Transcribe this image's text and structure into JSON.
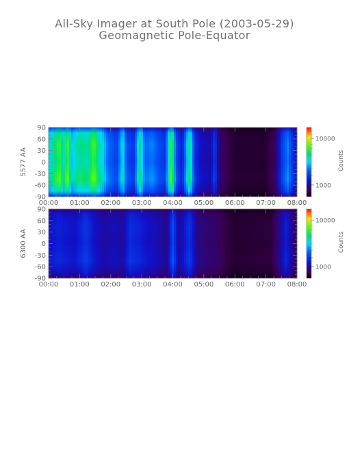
{
  "title": "All-Sky Imager at South Pole (2003-05-29)",
  "subtitle": "Geomagnetic Pole-Equator",
  "chart_data": [
    {
      "type": "heatmap",
      "ylabel": "5577 AA",
      "colorbar_label": "Counts",
      "colorbar_ticks": [
        "10000",
        "1000"
      ],
      "colorbar_scale": "log",
      "x_ticks": [
        "00:00",
        "01:00",
        "02:00",
        "03:00",
        "04:00",
        "05:00",
        "06:00",
        "07:00",
        "08:00"
      ],
      "xlim_hours": [
        0,
        8
      ],
      "y_ticks": [
        "90",
        "60",
        "30",
        "0",
        "-30",
        "-60",
        "-90"
      ],
      "ylim": [
        -90,
        90
      ],
      "intensity_profile": [
        [
          0.0,
          0.52
        ],
        [
          0.15,
          0.6
        ],
        [
          0.35,
          0.7
        ],
        [
          0.5,
          0.55
        ],
        [
          0.6,
          0.75
        ],
        [
          0.75,
          0.5
        ],
        [
          1.0,
          0.62
        ],
        [
          1.25,
          0.58
        ],
        [
          1.45,
          0.72
        ],
        [
          1.6,
          0.6
        ],
        [
          1.75,
          0.52
        ],
        [
          1.9,
          0.4
        ],
        [
          2.0,
          0.38
        ],
        [
          2.2,
          0.32
        ],
        [
          2.4,
          0.55
        ],
        [
          2.5,
          0.35
        ],
        [
          2.75,
          0.3
        ],
        [
          2.95,
          0.62
        ],
        [
          3.1,
          0.38
        ],
        [
          3.35,
          0.42
        ],
        [
          3.5,
          0.36
        ],
        [
          3.75,
          0.3
        ],
        [
          3.95,
          0.72
        ],
        [
          4.1,
          0.35
        ],
        [
          4.3,
          0.25
        ],
        [
          4.55,
          0.62
        ],
        [
          4.7,
          0.3
        ],
        [
          4.9,
          0.22
        ],
        [
          5.2,
          0.18
        ],
        [
          5.35,
          0.32
        ],
        [
          5.5,
          0.12
        ],
        [
          5.75,
          0.08
        ],
        [
          6.0,
          0.05
        ],
        [
          7.0,
          0.05
        ],
        [
          7.3,
          0.1
        ],
        [
          7.5,
          0.3
        ],
        [
          7.7,
          0.42
        ],
        [
          7.85,
          0.3
        ],
        [
          8.0,
          0.22
        ]
      ]
    },
    {
      "type": "heatmap",
      "ylabel": "6300 AA",
      "colorbar_label": "Counts",
      "colorbar_ticks": [
        "10000",
        "1000"
      ],
      "colorbar_scale": "log",
      "x_ticks": [
        "00:00",
        "01:00",
        "02:00",
        "03:00",
        "04:00",
        "05:00",
        "06:00",
        "07:00",
        "08:00"
      ],
      "xlim_hours": [
        0,
        8
      ],
      "y_ticks": [
        "90",
        "60",
        "30",
        "0",
        "-30",
        "-60",
        "-90"
      ],
      "ylim": [
        -90,
        90
      ],
      "intensity_profile": [
        [
          0.0,
          0.22
        ],
        [
          0.3,
          0.26
        ],
        [
          0.55,
          0.24
        ],
        [
          0.85,
          0.22
        ],
        [
          1.2,
          0.3
        ],
        [
          1.5,
          0.22
        ],
        [
          1.8,
          0.18
        ],
        [
          2.1,
          0.2
        ],
        [
          2.4,
          0.18
        ],
        [
          2.6,
          0.28
        ],
        [
          2.9,
          0.26
        ],
        [
          3.2,
          0.22
        ],
        [
          3.5,
          0.2
        ],
        [
          3.8,
          0.15
        ],
        [
          4.0,
          0.34
        ],
        [
          4.2,
          0.17
        ],
        [
          4.55,
          0.3
        ],
        [
          4.8,
          0.14
        ],
        [
          5.1,
          0.12
        ],
        [
          5.4,
          0.11
        ],
        [
          5.7,
          0.07
        ],
        [
          6.0,
          0.05
        ],
        [
          7.2,
          0.06
        ],
        [
          7.45,
          0.16
        ],
        [
          7.65,
          0.26
        ],
        [
          7.85,
          0.15
        ],
        [
          8.0,
          0.1
        ]
      ]
    }
  ]
}
